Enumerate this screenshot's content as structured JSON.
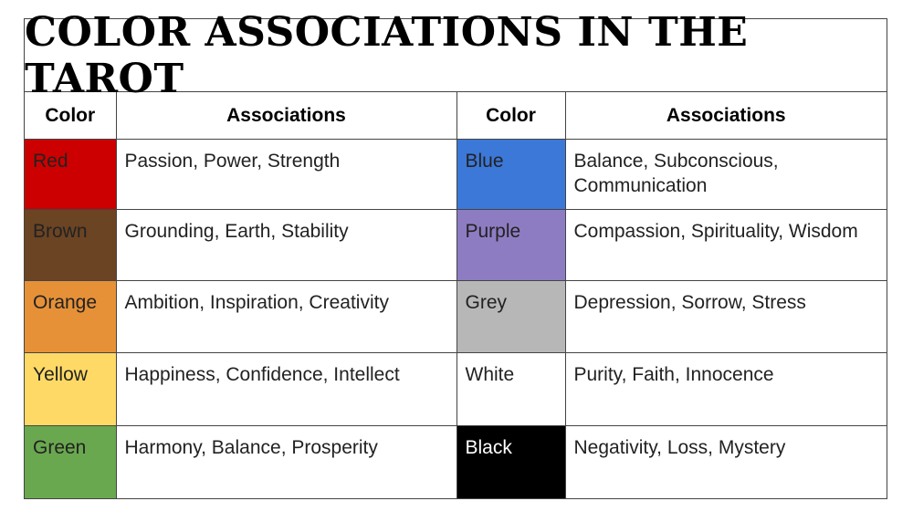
{
  "title": "COLOR ASSOCIATIONS IN THE TAROT",
  "headers": {
    "color": "Color",
    "associations": "Associations"
  },
  "rows": [
    {
      "left": {
        "color": "Red",
        "swatch": "#cc0000",
        "associations": "Passion, Power, Strength"
      },
      "right": {
        "color": "Blue",
        "swatch": "#3c78d8",
        "associations": "Balance, Subconscious, Communication"
      }
    },
    {
      "left": {
        "color": "Brown",
        "swatch": "#6b4423",
        "associations": "Grounding, Earth, Stability"
      },
      "right": {
        "color": "Purple",
        "swatch": "#8e7cc3",
        "associations": "Compassion, Spirituality, Wisdom"
      }
    },
    {
      "left": {
        "color": "Orange",
        "swatch": "#e69138",
        "associations": "Ambition, Inspiration, Creativity"
      },
      "right": {
        "color": "Grey",
        "swatch": "#b7b7b7",
        "associations": "Depression, Sorrow, Stress"
      }
    },
    {
      "left": {
        "color": "Yellow",
        "swatch": "#ffd966",
        "associations": "Happiness, Confidence, Intellect"
      },
      "right": {
        "color": "White",
        "swatch": "#ffffff",
        "associations": "Purity, Faith, Innocence"
      }
    },
    {
      "left": {
        "color": "Green",
        "swatch": "#6aa84f",
        "associations": "Harmony, Balance, Prosperity"
      },
      "right": {
        "color": "Black",
        "swatch": "#000000",
        "associations": "Negativity, Loss, Mystery"
      }
    }
  ]
}
